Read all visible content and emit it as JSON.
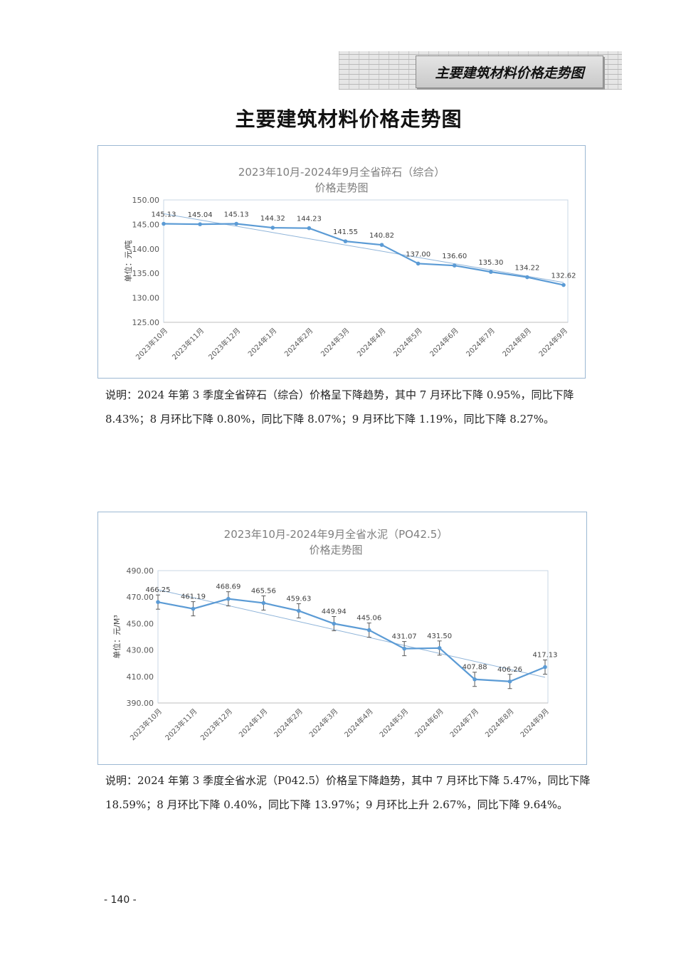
{
  "header": {
    "badge": "主要建筑材料价格走势图"
  },
  "page": {
    "title": "主要建筑材料价格走势图",
    "page_number": "- 140 -"
  },
  "chart_data": [
    {
      "type": "line",
      "title": "2023年10月-2024年9月全省碎石（综合）",
      "subtitle": "价格走势图",
      "xlabel": "",
      "ylabel": "单位：元/吨",
      "categories": [
        "2023年10月",
        "2023年11月",
        "2023年12月",
        "2024年1月",
        "2024年2月",
        "2024年3月",
        "2024年4月",
        "2024年5月",
        "2024年6月",
        "2024年7月",
        "2024年8月",
        "2024年9月"
      ],
      "series": [
        {
          "values": [
            145.13,
            145.04,
            145.13,
            144.32,
            144.23,
            141.55,
            140.82,
            137.0,
            136.6,
            135.3,
            134.22,
            132.62
          ]
        }
      ],
      "data_labels": [
        "145.13",
        "145.04",
        "145.13",
        "144.32",
        "144.23",
        "141.55",
        "140.82",
        "137.00",
        "136.60",
        "135.30",
        "134.22",
        "132.62"
      ],
      "trendline": true,
      "error_bars": false,
      "ylim": [
        125,
        150
      ],
      "yticks": [
        125,
        130,
        135,
        140,
        145,
        150
      ],
      "ytick_labels": [
        "125.00",
        "130.00",
        "135.00",
        "140.00",
        "145.00",
        "150.00"
      ],
      "grid": "vertical",
      "legend": "none",
      "colors": {
        "line": "#5b9bd5",
        "trend": "#8fb4d9",
        "grid": "#d9d9d9",
        "title": "#7f7f7f"
      }
    },
    {
      "type": "line",
      "title": "2023年10月-2024年9月全省水泥（PO42.5）",
      "subtitle": "价格走势图",
      "xlabel": "",
      "ylabel": "单位：元/M³",
      "categories": [
        "2023年10月",
        "2023年11月",
        "2023年12月",
        "2024年1月",
        "2024年2月",
        "2024年3月",
        "2024年4月",
        "2024年5月",
        "2024年6月",
        "2024年7月",
        "2024年8月",
        "2024年9月"
      ],
      "series": [
        {
          "values": [
            466.25,
            461.19,
            468.69,
            465.56,
            459.63,
            449.94,
            445.06,
            431.07,
            431.5,
            407.88,
            406.26,
            417.13
          ]
        }
      ],
      "data_labels": [
        "466.25",
        "461.19",
        "468.69",
        "465.56",
        "459.63",
        "449.94",
        "445.06",
        "431.07",
        "431.50",
        "407.88",
        "406.26",
        "417.13"
      ],
      "trendline": true,
      "error_bars": true,
      "ylim": [
        390,
        490
      ],
      "yticks": [
        390,
        410,
        430,
        450,
        470,
        490
      ],
      "ytick_labels": [
        "390.00",
        "410.00",
        "430.00",
        "450.00",
        "470.00",
        "490.00"
      ],
      "grid": "vertical",
      "legend": "none",
      "colors": {
        "line": "#5b9bd5",
        "trend": "#8fb4d9",
        "grid": "#d9d9d9",
        "title": "#7f7f7f"
      }
    }
  ],
  "notes": [
    "说明：2024 年第 3 季度全省碎石（综合）价格呈下降趋势，其中 7 月环比下降 0.95%，同比下降 8.43%；8 月环比下降 0.80%，同比下降 8.07%；9 月环比下降 1.19%，同比下降 8.27%。",
    "说明：2024 年第 3 季度全省水泥（P042.5）价格呈下降趋势，其中 7 月环比下降 5.47%，同比下降 18.59%；8 月环比下降 0.40%，同比下降 13.97%；9 月环比上升 2.67%，同比下降 9.64%。"
  ]
}
